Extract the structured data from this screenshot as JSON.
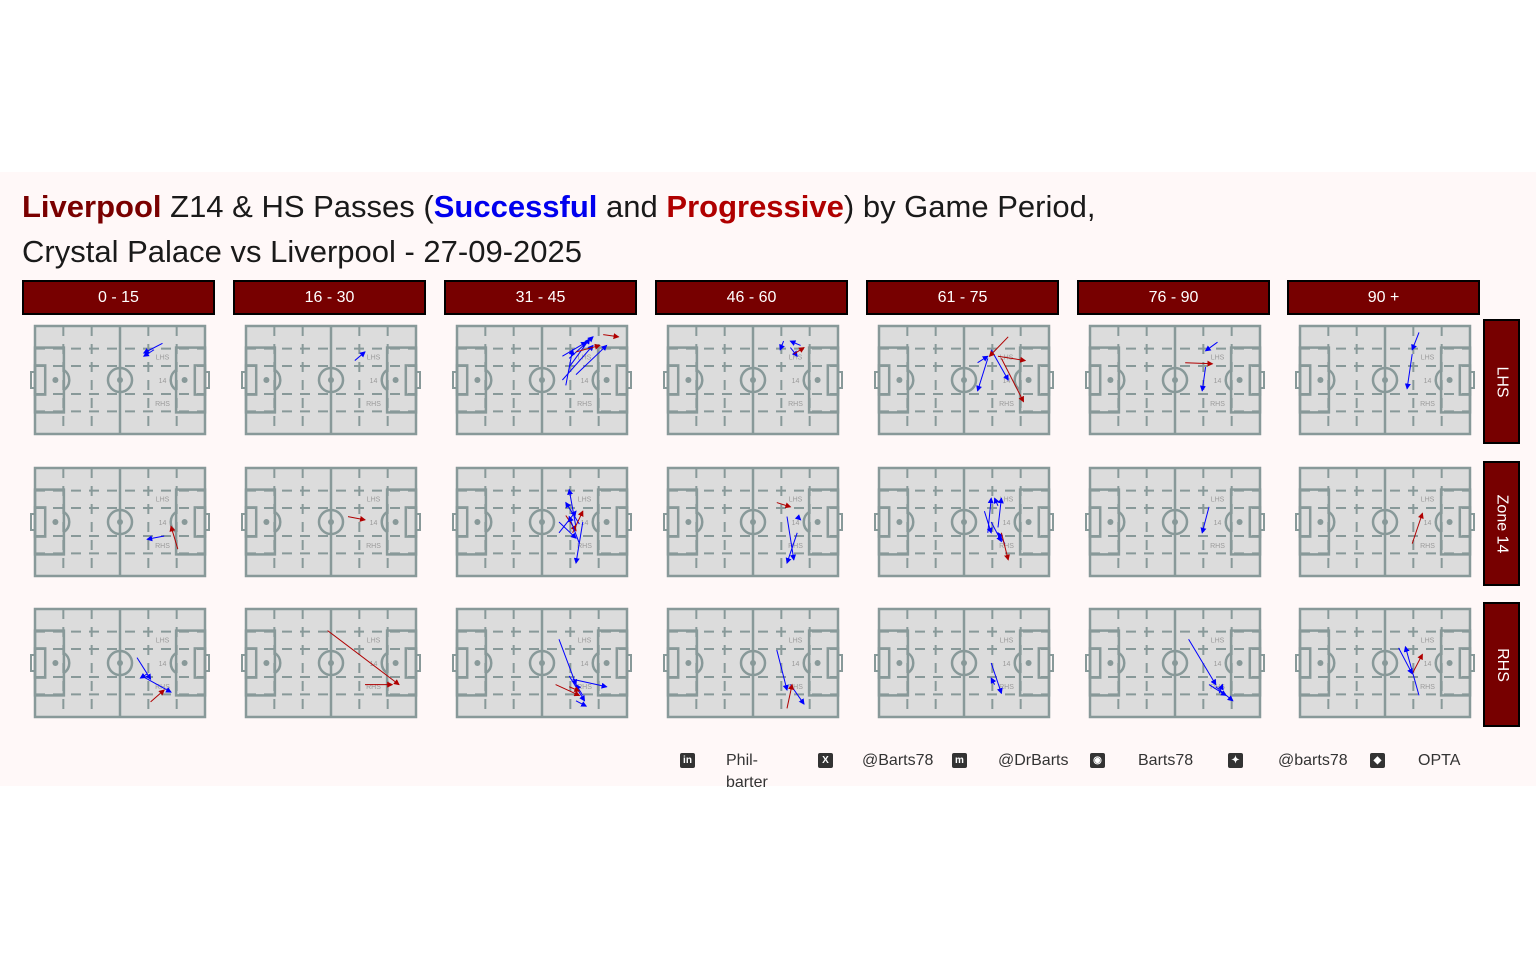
{
  "title": {
    "team": "Liverpool",
    "part1": " Z14 & HS Passes (",
    "successful": "Successful",
    "part2": " and ",
    "progressive": "Progressive",
    "part3": ") by Game Period,",
    "line2": "Crystal Palace vs Liverpool - 27-09-2025"
  },
  "colors": {
    "successful": "#0000ff",
    "progressive": "#b00000",
    "strip": "#770000",
    "pitch_fill": "#dcdcdc",
    "pitch_line": "#889999"
  },
  "pitch_labels": {
    "lhs": "LHS",
    "z14": "14",
    "rhs": "RHS"
  },
  "footer": {
    "items": [
      {
        "icon": "linkedin-icon",
        "glyph": "in",
        "text": "Phil-barter"
      },
      {
        "icon": "x-icon",
        "glyph": "X",
        "text": "@Barts78"
      },
      {
        "icon": "mastodon-icon",
        "glyph": "m",
        "text": "@DrBarts"
      },
      {
        "icon": "github-icon",
        "glyph": "◉",
        "text": "Barts78"
      },
      {
        "icon": "bluesky-icon",
        "glyph": "✦",
        "text": "@barts78"
      },
      {
        "icon": "dropbox-icon",
        "glyph": "◆",
        "text": "OPTA"
      }
    ]
  },
  "chart_data": {
    "type": "facet-pitch-arrows",
    "pitch": {
      "x_range": [
        0,
        100
      ],
      "y_range": [
        0,
        100
      ]
    },
    "columns": [
      "0 - 15",
      "16 - 30",
      "31 - 45",
      "46 - 60",
      "61 - 75",
      "76 - 90",
      "90 +"
    ],
    "rows": [
      "LHS",
      "Zone 14",
      "RHS"
    ],
    "passes": [
      [
        [
          {
            "x": 75,
            "y": 84,
            "ex": 64,
            "ey": 75,
            "t": "s"
          },
          {
            "x": 70,
            "y": 78,
            "ex": 64,
            "ey": 72,
            "t": "s"
          }
        ],
        [
          {
            "x": 76,
            "y": 37,
            "ex": 66,
            "ey": 34,
            "t": "s"
          },
          {
            "x": 84,
            "y": 25,
            "ex": 80,
            "ey": 46,
            "t": "p"
          }
        ],
        [
          {
            "x": 60,
            "y": 55,
            "ex": 68,
            "ey": 35,
            "t": "s"
          },
          {
            "x": 64,
            "y": 37,
            "ex": 80,
            "ey": 23,
            "t": "s"
          },
          {
            "x": 68,
            "y": 14,
            "ex": 76,
            "ey": 25,
            "t": "p"
          },
          {
            "x": 66,
            "y": 40,
            "ex": 62,
            "ey": 36,
            "t": "s"
          }
        ]
      ],
      [
        [
          {
            "x": 64,
            "y": 68,
            "ex": 70,
            "ey": 76,
            "t": "s"
          }
        ],
        [
          {
            "x": 60,
            "y": 55,
            "ex": 70,
            "ey": 52,
            "t": "p"
          }
        ],
        [
          {
            "x": 48,
            "y": 80,
            "ex": 90,
            "ey": 30,
            "t": "p"
          },
          {
            "x": 70,
            "y": 30,
            "ex": 86,
            "ey": 30,
            "t": "p"
          }
        ]
      ],
      [
        [
          {
            "x": 66,
            "y": 70,
            "ex": 80,
            "ey": 90,
            "t": "s"
          },
          {
            "x": 62,
            "y": 72,
            "ex": 76,
            "ey": 85,
            "t": "s"
          },
          {
            "x": 70,
            "y": 55,
            "ex": 88,
            "ey": 82,
            "t": "s"
          },
          {
            "x": 62,
            "y": 50,
            "ex": 80,
            "ey": 82,
            "t": "s"
          },
          {
            "x": 64,
            "y": 45,
            "ex": 68,
            "ey": 78,
            "t": "s"
          },
          {
            "x": 66,
            "y": 62,
            "ex": 78,
            "ey": 88,
            "t": "s"
          },
          {
            "x": 86,
            "y": 92,
            "ex": 95,
            "ey": 90,
            "t": "p"
          },
          {
            "x": 70,
            "y": 76,
            "ex": 84,
            "ey": 82,
            "t": "p"
          }
        ],
        [
          {
            "x": 70,
            "y": 45,
            "ex": 66,
            "ey": 80,
            "t": "s"
          },
          {
            "x": 60,
            "y": 50,
            "ex": 70,
            "ey": 35,
            "t": "s"
          },
          {
            "x": 72,
            "y": 48,
            "ex": 64,
            "ey": 68,
            "t": "s"
          },
          {
            "x": 60,
            "y": 40,
            "ex": 70,
            "ey": 60,
            "t": "s"
          },
          {
            "x": 64,
            "y": 56,
            "ex": 70,
            "ey": 42,
            "t": "p"
          },
          {
            "x": 68,
            "y": 40,
            "ex": 74,
            "ey": 60,
            "t": "p"
          },
          {
            "x": 72,
            "y": 30,
            "ex": 66,
            "ey": 55,
            "t": "s"
          },
          {
            "x": 74,
            "y": 50,
            "ex": 70,
            "ey": 12,
            "t": "s"
          }
        ],
        [
          {
            "x": 60,
            "y": 72,
            "ex": 70,
            "ey": 30,
            "t": "s"
          },
          {
            "x": 68,
            "y": 35,
            "ex": 88,
            "ey": 28,
            "t": "s"
          },
          {
            "x": 58,
            "y": 30,
            "ex": 72,
            "ey": 20,
            "t": "p"
          },
          {
            "x": 66,
            "y": 38,
            "ex": 75,
            "ey": 15,
            "t": "s"
          },
          {
            "x": 74,
            "y": 20,
            "ex": 70,
            "ey": 30,
            "t": "s"
          },
          {
            "x": 70,
            "y": 15,
            "ex": 76,
            "ey": 10,
            "t": "s"
          },
          {
            "x": 66,
            "y": 28,
            "ex": 72,
            "ey": 24,
            "t": "p"
          }
        ]
      ],
      [
        [
          {
            "x": 68,
            "y": 86,
            "ex": 66,
            "ey": 78,
            "t": "s"
          },
          {
            "x": 72,
            "y": 80,
            "ex": 76,
            "ey": 72,
            "t": "s"
          },
          {
            "x": 78,
            "y": 82,
            "ex": 72,
            "ey": 86,
            "t": "s"
          },
          {
            "x": 74,
            "y": 74,
            "ex": 80,
            "ey": 80,
            "t": "p"
          }
        ],
        [
          {
            "x": 64,
            "y": 68,
            "ex": 72,
            "ey": 64,
            "t": "p"
          },
          {
            "x": 76,
            "y": 40,
            "ex": 70,
            "ey": 12,
            "t": "s"
          },
          {
            "x": 70,
            "y": 55,
            "ex": 74,
            "ey": 15,
            "t": "s"
          },
          {
            "x": 76,
            "y": 55,
            "ex": 78,
            "ey": 52,
            "t": "s"
          }
        ],
        [
          {
            "x": 64,
            "y": 62,
            "ex": 70,
            "ey": 25,
            "t": "s"
          },
          {
            "x": 72,
            "y": 30,
            "ex": 80,
            "ey": 12,
            "t": "s"
          },
          {
            "x": 70,
            "y": 8,
            "ex": 73,
            "ey": 30,
            "t": "p"
          }
        ]
      ],
      [
        [
          {
            "x": 64,
            "y": 70,
            "ex": 58,
            "ey": 40,
            "t": "s"
          },
          {
            "x": 66,
            "y": 78,
            "ex": 76,
            "ey": 50,
            "t": "s"
          },
          {
            "x": 76,
            "y": 90,
            "ex": 65,
            "ey": 72,
            "t": "p"
          },
          {
            "x": 70,
            "y": 72,
            "ex": 86,
            "ey": 68,
            "t": "p"
          },
          {
            "x": 72,
            "y": 70,
            "ex": 85,
            "ey": 30,
            "t": "p"
          },
          {
            "x": 58,
            "y": 66,
            "ex": 64,
            "ey": 72,
            "t": "s"
          }
        ],
        [
          {
            "x": 64,
            "y": 40,
            "ex": 66,
            "ey": 72,
            "t": "s"
          },
          {
            "x": 70,
            "y": 65,
            "ex": 68,
            "ey": 72,
            "t": "s"
          },
          {
            "x": 62,
            "y": 60,
            "ex": 66,
            "ey": 40,
            "t": "s"
          },
          {
            "x": 66,
            "y": 50,
            "ex": 72,
            "ey": 32,
            "t": "s"
          },
          {
            "x": 74,
            "y": 30,
            "ex": 70,
            "ey": 40,
            "t": "s"
          },
          {
            "x": 72,
            "y": 40,
            "ex": 76,
            "ey": 15,
            "t": "p"
          },
          {
            "x": 70,
            "y": 45,
            "ex": 72,
            "ey": 72,
            "t": "s"
          }
        ],
        [
          {
            "x": 66,
            "y": 50,
            "ex": 72,
            "ey": 22,
            "t": "s"
          },
          {
            "x": 68,
            "y": 30,
            "ex": 66,
            "ey": 36,
            "t": "s"
          }
        ]
      ],
      [
        [
          {
            "x": 75,
            "y": 85,
            "ex": 68,
            "ey": 77,
            "t": "s"
          },
          {
            "x": 56,
            "y": 66,
            "ex": 72,
            "ey": 65,
            "t": "p"
          },
          {
            "x": 68,
            "y": 62,
            "ex": 66,
            "ey": 40,
            "t": "s"
          }
        ],
        [
          {
            "x": 70,
            "y": 64,
            "ex": 66,
            "ey": 40,
            "t": "s"
          }
        ],
        [
          {
            "x": 58,
            "y": 72,
            "ex": 74,
            "ey": 30,
            "t": "s"
          },
          {
            "x": 70,
            "y": 30,
            "ex": 80,
            "ey": 20,
            "t": "s"
          },
          {
            "x": 76,
            "y": 22,
            "ex": 78,
            "ey": 30,
            "t": "s"
          },
          {
            "x": 74,
            "y": 28,
            "ex": 84,
            "ey": 15,
            "t": "s"
          }
        ]
      ],
      [
        [
          {
            "x": 70,
            "y": 94,
            "ex": 66,
            "ey": 78,
            "t": "s"
          },
          {
            "x": 66,
            "y": 74,
            "ex": 63,
            "ey": 42,
            "t": "s"
          }
        ],
        [
          {
            "x": 66,
            "y": 30,
            "ex": 72,
            "ey": 58,
            "t": "p"
          }
        ],
        [
          {
            "x": 58,
            "y": 64,
            "ex": 66,
            "ey": 40,
            "t": "s"
          },
          {
            "x": 66,
            "y": 40,
            "ex": 72,
            "ey": 58,
            "t": "p"
          },
          {
            "x": 70,
            "y": 20,
            "ex": 62,
            "ey": 65,
            "t": "s"
          }
        ]
      ]
    ]
  }
}
